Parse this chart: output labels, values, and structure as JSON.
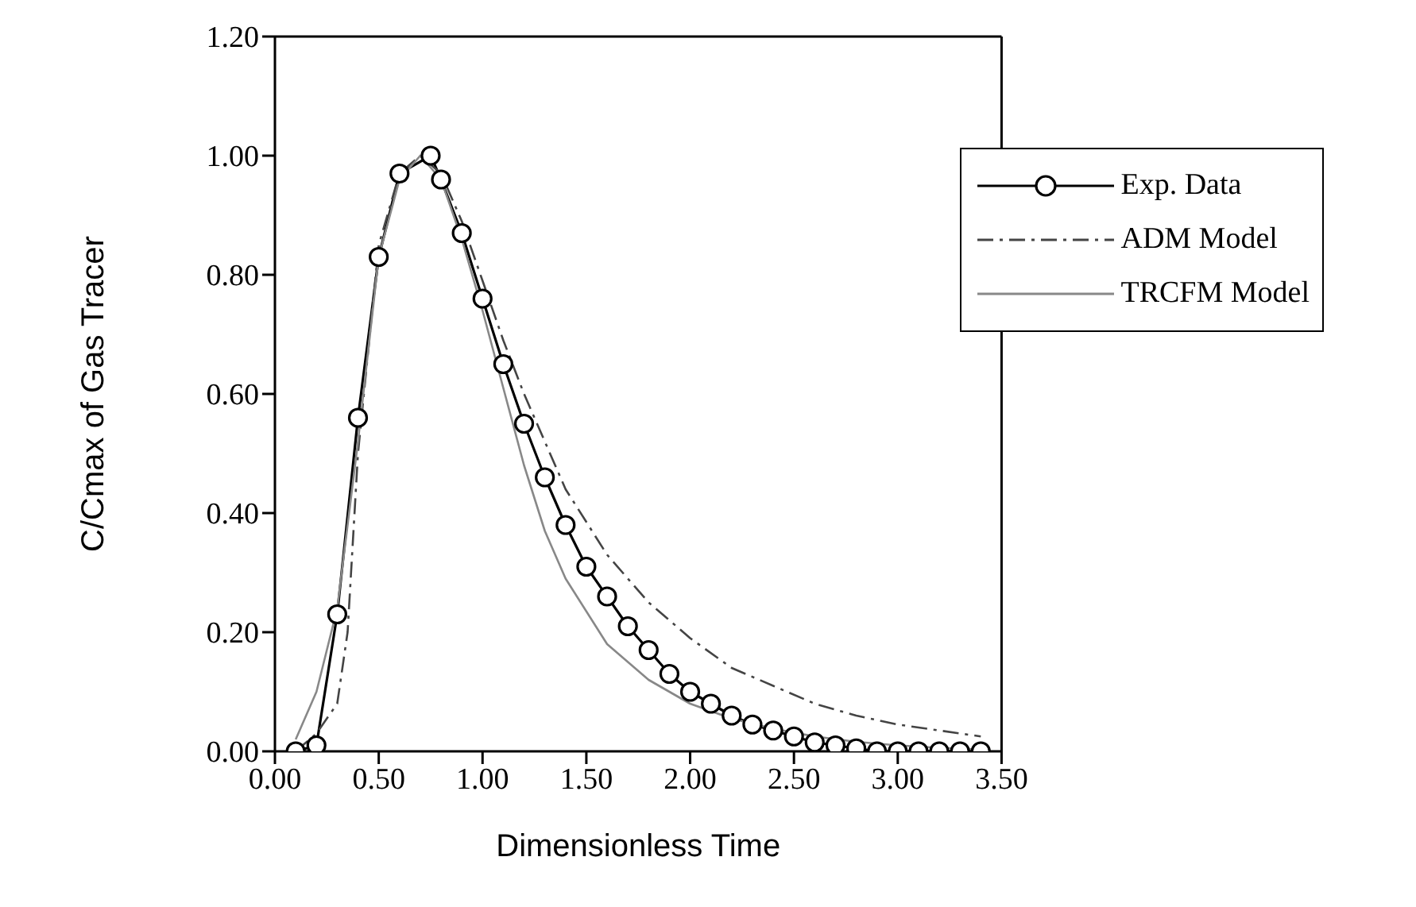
{
  "chart_data": {
    "type": "line",
    "xlabel": "Dimensionless Time",
    "ylabel": "C/Cmax of Gas Tracer",
    "xlim": [
      0,
      3.5
    ],
    "xticks": [
      {
        "value": 0,
        "label": "0.00"
      },
      {
        "value": 0.5,
        "label": "0.50"
      },
      {
        "value": 1,
        "label": "1.00"
      },
      {
        "value": 1.5,
        "label": "1.50"
      },
      {
        "value": 2,
        "label": "2.00"
      },
      {
        "value": 2.5,
        "label": "2.50"
      },
      {
        "value": 3,
        "label": "3.00"
      },
      {
        "value": 3.5,
        "label": "3.50"
      }
    ],
    "ylim": [
      0,
      1.2
    ],
    "yticks": [
      {
        "value": 0,
        "label": "0.00"
      },
      {
        "value": 0.2,
        "label": "0.20"
      },
      {
        "value": 0.4,
        "label": "0.40"
      },
      {
        "value": 0.6,
        "label": "0.60"
      },
      {
        "value": 0.8,
        "label": "0.80"
      },
      {
        "value": 1,
        "label": "1.00"
      },
      {
        "value": 1.2,
        "label": "1.20"
      }
    ],
    "grid": false,
    "legend": "top right",
    "series": [
      {
        "name": "Exp. Data",
        "color": "#000000",
        "marker": "circle",
        "line_style": "solid",
        "x": [
          0.1,
          0.2,
          0.3,
          0.4,
          0.5,
          0.6,
          0.75,
          0.8,
          0.9,
          1.0,
          1.1,
          1.2,
          1.3,
          1.4,
          1.5,
          1.6,
          1.7,
          1.8,
          1.9,
          2.0,
          2.1,
          2.2,
          2.3,
          2.4,
          2.5,
          2.6,
          2.7,
          2.8,
          2.9,
          3.0,
          3.1,
          3.2,
          3.3,
          3.4
        ],
        "values": [
          0.0,
          0.01,
          0.23,
          0.56,
          0.83,
          0.97,
          1.0,
          0.96,
          0.87,
          0.76,
          0.65,
          0.55,
          0.46,
          0.38,
          0.31,
          0.26,
          0.21,
          0.17,
          0.13,
          0.1,
          0.08,
          0.06,
          0.045,
          0.035,
          0.025,
          0.015,
          0.01,
          0.005,
          0,
          0,
          0,
          0,
          0,
          0
        ]
      },
      {
        "name": "ADM Model",
        "color": "#444444",
        "marker": "none",
        "line_style": "dashed",
        "x": [
          0.1,
          0.2,
          0.3,
          0.35,
          0.4,
          0.5,
          0.6,
          0.7,
          0.8,
          0.9,
          1.0,
          1.1,
          1.2,
          1.3,
          1.4,
          1.6,
          1.8,
          2.0,
          2.2,
          2.4,
          2.6,
          2.8,
          3.0,
          3.2,
          3.4
        ],
        "values": [
          0.0,
          0.03,
          0.08,
          0.2,
          0.5,
          0.85,
          0.97,
          1.0,
          0.97,
          0.89,
          0.79,
          0.69,
          0.6,
          0.52,
          0.44,
          0.33,
          0.25,
          0.19,
          0.14,
          0.11,
          0.08,
          0.06,
          0.045,
          0.035,
          0.025
        ]
      },
      {
        "name": "TRCFM Model",
        "color": "#888888",
        "marker": "none",
        "line_style": "solid",
        "x": [
          0.1,
          0.2,
          0.3,
          0.4,
          0.5,
          0.6,
          0.7,
          0.8,
          0.9,
          1.0,
          1.1,
          1.2,
          1.3,
          1.4,
          1.6,
          1.8,
          2.0,
          2.2,
          2.4,
          2.6,
          2.8,
          3.0,
          3.2,
          3.4
        ],
        "values": [
          0.02,
          0.1,
          0.24,
          0.52,
          0.83,
          0.96,
          1.0,
          0.96,
          0.86,
          0.74,
          0.61,
          0.48,
          0.37,
          0.29,
          0.18,
          0.12,
          0.08,
          0.055,
          0.038,
          0.025,
          0.016,
          0.01,
          0.006,
          0.003
        ]
      }
    ]
  }
}
